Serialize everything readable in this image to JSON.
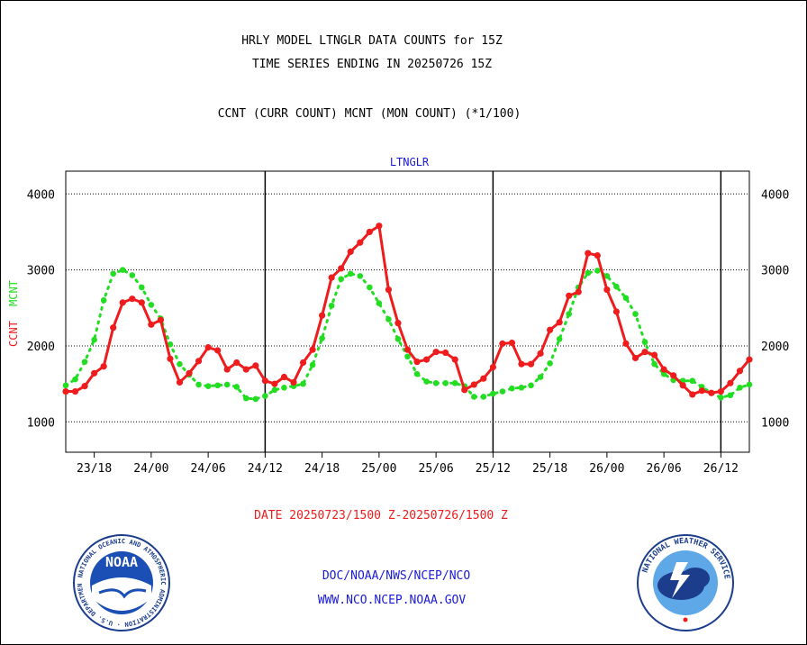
{
  "title_line1": "HRLY MODEL LTNGLR DATA COUNTS for 15Z",
  "title_line2": "TIME SERIES ENDING IN 20250726 15Z",
  "subtitle": "CCNT (CURR COUNT) MCNT (MON COUNT) (*1/100)",
  "footer": {
    "date_range": "DATE 20250723/1500 Z-20250726/1500 Z",
    "org_path": "DOC/NOAA/NWS/NCEP/NCO",
    "website": "WWW.NCO.NCEP.NOAA.GOV"
  },
  "logos": {
    "noaa_text": "NOAA",
    "noaa_ring": "NATIONAL OCEANIC AND ATMOSPHERIC ADMINISTRATION · U.S. DEPARTMENT OF COMMERCE",
    "nws_ring": "NATIONAL WEATHER SERVICE"
  },
  "colors": {
    "ccnt": "#ee1c1c",
    "mcnt": "#22dd22",
    "panel_title": "#1a1ad6",
    "date": "#ee1c1c"
  },
  "chart_data": {
    "type": "line",
    "title": "LTNGLR",
    "ylabel_ccnt": "CCNT",
    "ylabel_mcnt": "MCNT",
    "ylim": [
      600,
      4300
    ],
    "yticks": [
      1000,
      2000,
      3000,
      4000
    ],
    "xlim": [
      0,
      72
    ],
    "xticks": [
      {
        "x": 3,
        "label": "23/18"
      },
      {
        "x": 9,
        "label": "24/00"
      },
      {
        "x": 15,
        "label": "24/06"
      },
      {
        "x": 21,
        "label": "24/12"
      },
      {
        "x": 27,
        "label": "24/18"
      },
      {
        "x": 33,
        "label": "25/00"
      },
      {
        "x": 39,
        "label": "25/06"
      },
      {
        "x": 45,
        "label": "25/12"
      },
      {
        "x": 51,
        "label": "25/18"
      },
      {
        "x": 57,
        "label": "26/00"
      },
      {
        "x": 63,
        "label": "26/06"
      },
      {
        "x": 69,
        "label": "26/12"
      }
    ],
    "day_boundaries": [
      21,
      45,
      69
    ],
    "x": [
      0,
      1,
      2,
      3,
      4,
      5,
      6,
      7,
      8,
      9,
      10,
      11,
      12,
      13,
      14,
      15,
      16,
      17,
      18,
      19,
      20,
      21,
      22,
      23,
      24,
      25,
      26,
      27,
      28,
      29,
      30,
      31,
      32,
      33,
      34,
      35,
      36,
      37,
      38,
      39,
      40,
      41,
      42,
      43,
      44,
      45,
      46,
      47,
      48,
      49,
      50,
      51,
      52,
      53,
      54,
      55,
      56,
      57,
      58,
      59,
      60,
      61,
      62,
      63,
      64,
      65,
      66,
      67,
      68,
      69,
      70,
      71,
      72
    ],
    "series": [
      {
        "name": "CCNT",
        "values": [
          1400,
          1400,
          1470,
          1640,
          1730,
          2240,
          2570,
          2620,
          2570,
          2280,
          2340,
          1830,
          1520,
          1640,
          1800,
          1980,
          1940,
          1690,
          1780,
          1690,
          1740,
          1540,
          1500,
          1590,
          1520,
          1780,
          1950,
          2400,
          2900,
          3020,
          3240,
          3360,
          3500,
          3580,
          2740,
          2300,
          1950,
          1790,
          1820,
          1920,
          1910,
          1820,
          1420,
          1490,
          1570,
          1720,
          2030,
          2040,
          1760,
          1760,
          1900,
          2210,
          2310,
          2660,
          2710,
          3220,
          3190,
          2740,
          2450,
          2030,
          1840,
          1920,
          1880,
          1690,
          1610,
          1480,
          1360,
          1410,
          1380,
          1400,
          1510,
          1670,
          1820
        ]
      },
      {
        "name": "MCNT",
        "values": [
          1480,
          1560,
          1790,
          2080,
          2600,
          2950,
          3000,
          2930,
          2770,
          2540,
          2360,
          2020,
          1760,
          1620,
          1490,
          1470,
          1480,
          1490,
          1460,
          1310,
          1300,
          1340,
          1420,
          1450,
          1470,
          1500,
          1750,
          2100,
          2530,
          2880,
          2950,
          2920,
          2770,
          2560,
          2350,
          2090,
          1860,
          1630,
          1530,
          1510,
          1510,
          1510,
          1470,
          1330,
          1330,
          1370,
          1400,
          1440,
          1450,
          1480,
          1590,
          1770,
          2090,
          2420,
          2770,
          2960,
          2990,
          2920,
          2780,
          2630,
          2420,
          2050,
          1760,
          1630,
          1550,
          1540,
          1540,
          1460,
          1380,
          1320,
          1350,
          1450,
          1490
        ]
      }
    ]
  }
}
